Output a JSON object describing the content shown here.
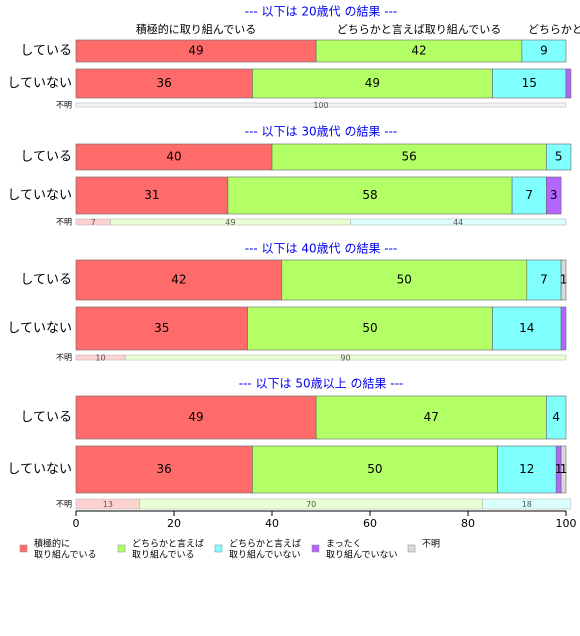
{
  "chart_data": {
    "type": "stacked-bar-horizontal",
    "xlim": [
      0,
      100
    ],
    "xticks": [
      0,
      20,
      40,
      60,
      80,
      100
    ],
    "series": [
      {
        "name": "積極的に取り組んでいる",
        "color": "#ff6b6b",
        "legend_lines": [
          "積極的に",
          "取り組んでいる"
        ]
      },
      {
        "name": "どちらかと言えば取り組んでいる",
        "color": "#b3ff66",
        "legend_lines": [
          "どちらかと言えば",
          "取り組んでいる"
        ]
      },
      {
        "name": "どちらかと言えば取り組んでいない",
        "color": "#80ffff",
        "legend_lines": [
          "どちらかと言えば",
          "取り組んでいない"
        ]
      },
      {
        "name": "まったく取り組んでいない",
        "color": "#b266ff",
        "legend_lines": [
          "まったく",
          "取り組んでいない"
        ]
      },
      {
        "name": "不明",
        "color": "#d9d9d9",
        "legend_lines": [
          "不明"
        ]
      }
    ],
    "panels": [
      {
        "title": "--- 以下は 20歳代 の結果 ---",
        "rows": [
          {
            "label": "している",
            "values": [
              49,
              42,
              9,
              0,
              0
            ],
            "value_labels": [
              "49",
              "42",
              "9",
              null,
              null
            ]
          },
          {
            "label": "していない",
            "values": [
              36,
              49,
              15,
              1,
              0
            ],
            "value_labels": [
              "36",
              "49",
              "15",
              null,
              null
            ]
          },
          {
            "label": "不明",
            "values": [
              0,
              0,
              0,
              0,
              100
            ],
            "value_labels": [
              null,
              null,
              null,
              null,
              "100"
            ]
          }
        ]
      },
      {
        "title": "--- 以下は 30歳代 の結果 ---",
        "rows": [
          {
            "label": "している",
            "values": [
              40,
              56,
              5,
              0,
              0
            ],
            "value_labels": [
              "40",
              "56",
              "5",
              null,
              null
            ]
          },
          {
            "label": "していない",
            "values": [
              31,
              58,
              7,
              3,
              0
            ],
            "value_labels": [
              "31",
              "58",
              "7",
              "3",
              null
            ]
          },
          {
            "label": "不明",
            "values": [
              7,
              49,
              44,
              0,
              0
            ],
            "value_labels": [
              "7",
              "49",
              "44",
              null,
              null
            ]
          }
        ]
      },
      {
        "title": "--- 以下は 40歳代 の結果 ---",
        "rows": [
          {
            "label": "している",
            "values": [
              42,
              50,
              7,
              0,
              1
            ],
            "value_labels": [
              "42",
              "50",
              "7",
              null,
              "1"
            ]
          },
          {
            "label": "していない",
            "values": [
              35,
              50,
              14,
              1,
              0
            ],
            "value_labels": [
              "35",
              "50",
              "14",
              null,
              null
            ]
          },
          {
            "label": "不明",
            "values": [
              10,
              90,
              0,
              0,
              0
            ],
            "value_labels": [
              "10",
              "90",
              null,
              null,
              null
            ]
          }
        ]
      },
      {
        "title": "--- 以下は 50歳以上 の結果 ---",
        "rows": [
          {
            "label": "している",
            "values": [
              49,
              47,
              4,
              0,
              0
            ],
            "value_labels": [
              "49",
              "47",
              "4",
              null,
              null
            ]
          },
          {
            "label": "していない",
            "values": [
              36,
              50,
              12,
              1,
              1
            ],
            "value_labels": [
              "36",
              "50",
              "12",
              "1",
              "1"
            ]
          },
          {
            "label": "不明",
            "values": [
              13,
              70,
              18,
              0,
              0
            ],
            "value_labels": [
              "13",
              "70",
              "18",
              null,
              null
            ]
          }
        ]
      }
    ]
  }
}
